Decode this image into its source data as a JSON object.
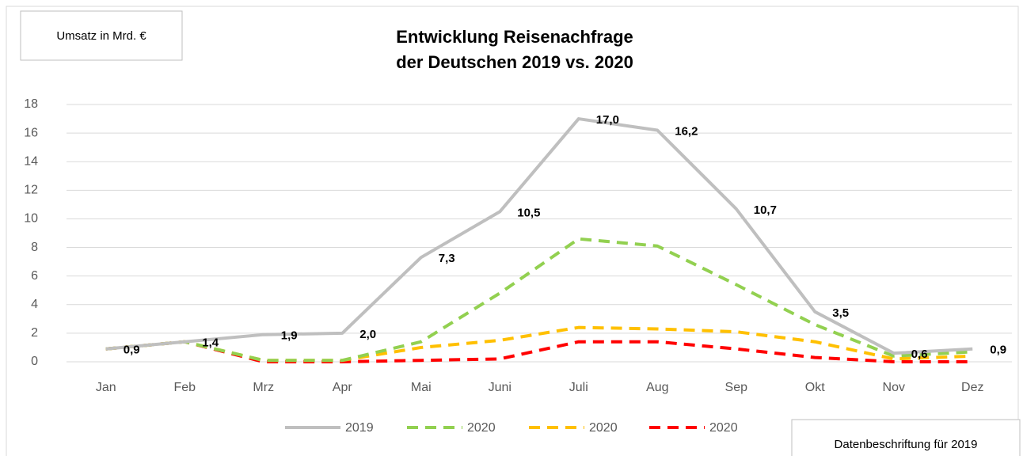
{
  "chart_data": {
    "type": "line",
    "title": [
      "Entwicklung Reisenachfrage",
      "der Deutschen 2019 vs. 2020"
    ],
    "annotations": [
      "Umsatz in Mrd. €",
      "Datenbeschriftung für 2019"
    ],
    "categories": [
      "Jan",
      "Feb",
      "Mrz",
      "Apr",
      "Mai",
      "Juni",
      "Juli",
      "Aug",
      "Sep",
      "Okt",
      "Nov",
      "Dez"
    ],
    "series": [
      {
        "name": "2019",
        "color": "#bfbfbf",
        "dashed": false,
        "values": [
          0.9,
          1.4,
          1.9,
          2.0,
          7.3,
          10.5,
          17.0,
          16.2,
          10.7,
          3.5,
          0.6,
          0.9
        ],
        "value_labels": [
          "0,9",
          "1,4",
          "1,9",
          "2,0",
          "7,3",
          "10,5",
          "17,0",
          "16,2",
          "10,7",
          "3,5",
          "0,6",
          "0,9"
        ]
      },
      {
        "name": "2020",
        "color": "#92d050",
        "dashed": true,
        "values": [
          0.9,
          1.4,
          0.1,
          0.1,
          1.4,
          4.8,
          8.6,
          8.1,
          5.4,
          2.6,
          0.4,
          0.7
        ]
      },
      {
        "name": "2020",
        "color": "#ffc000",
        "dashed": true,
        "values": [
          0.9,
          1.4,
          0.1,
          0.1,
          1.0,
          1.5,
          2.4,
          2.3,
          2.1,
          1.4,
          0.2,
          0.4
        ]
      },
      {
        "name": "2020",
        "color": "#ff0000",
        "dashed": true,
        "values": [
          0.9,
          1.4,
          0.0,
          0.0,
          0.1,
          0.2,
          1.4,
          1.4,
          0.9,
          0.3,
          0.0,
          0.0
        ]
      }
    ],
    "ylim": [
      0,
      18
    ],
    "yticks": [
      0,
      2,
      4,
      6,
      8,
      10,
      12,
      14,
      16,
      18
    ],
    "grid": true,
    "legend": "bottom"
  }
}
